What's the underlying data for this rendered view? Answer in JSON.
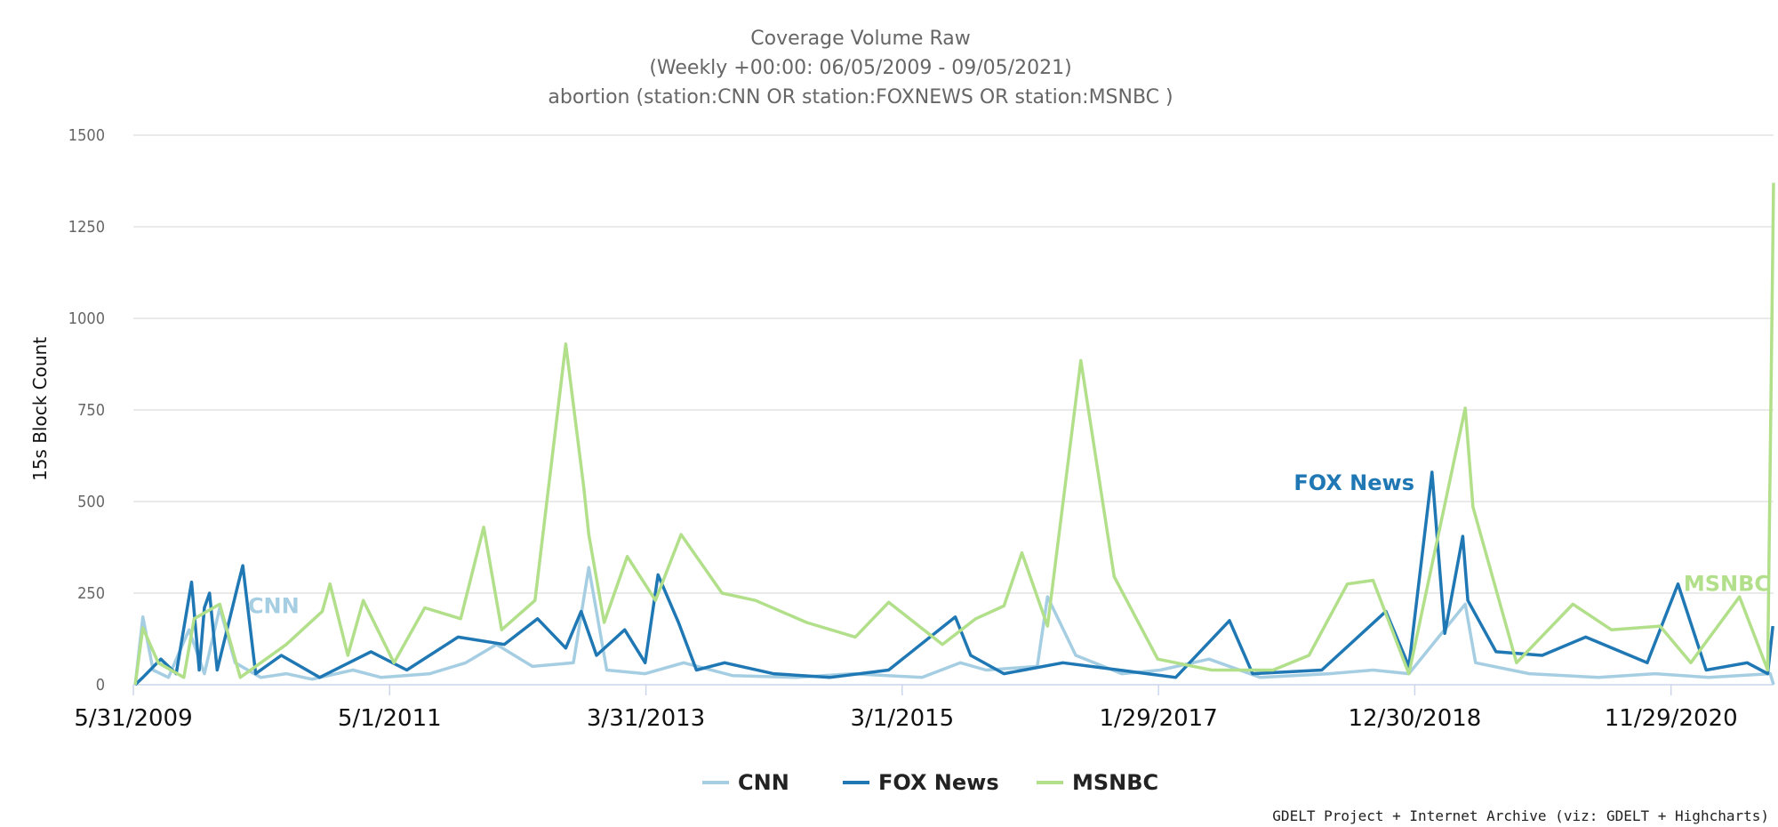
{
  "chart_data": {
    "type": "line",
    "title": "Coverage Volume Raw",
    "subtitle_lines": [
      "(Weekly +00:00: 06/05/2009 - 09/05/2021)",
      "abortion (station:CNN OR station:FOXNEWS OR station:MSNBC )"
    ],
    "ylabel": "15s Block Count",
    "xlabel": "",
    "ylim": [
      0,
      1500
    ],
    "yticks": [
      0,
      250,
      500,
      750,
      1000,
      1250,
      1500
    ],
    "xlim": [
      "2009-05-31",
      "2021-09-05"
    ],
    "xticks": [
      "5/31/2009",
      "5/1/2011",
      "3/31/2013",
      "3/1/2015",
      "1/29/2017",
      "12/30/2018",
      "11/29/2020"
    ],
    "grid": true,
    "legend_position": "bottom-center",
    "credits": "GDELT Project + Internet Archive (viz: GDELT + Highcharts)",
    "series": [
      {
        "name": "CNN",
        "label_on_chart": "CNN",
        "color": "#a6cee3",
        "points": [
          [
            "2009-06-05",
            0
          ],
          [
            "2009-06-26",
            185
          ],
          [
            "2009-07-24",
            40
          ],
          [
            "2009-09-04",
            20
          ],
          [
            "2009-10-30",
            150
          ],
          [
            "2009-12-11",
            30
          ],
          [
            "2010-01-22",
            210
          ],
          [
            "2010-03-05",
            60
          ],
          [
            "2010-05-14",
            20
          ],
          [
            "2010-07-23",
            30
          ],
          [
            "2010-10-01",
            15
          ],
          [
            "2011-01-21",
            40
          ],
          [
            "2011-04-08",
            20
          ],
          [
            "2011-08-19",
            30
          ],
          [
            "2011-11-25",
            60
          ],
          [
            "2012-02-17",
            110
          ],
          [
            "2012-05-25",
            50
          ],
          [
            "2012-09-14",
            60
          ],
          [
            "2012-10-26",
            320
          ],
          [
            "2012-12-14",
            40
          ],
          [
            "2013-03-29",
            30
          ],
          [
            "2013-07-12",
            60
          ],
          [
            "2013-11-22",
            25
          ],
          [
            "2014-05-16",
            20
          ],
          [
            "2014-10-17",
            30
          ],
          [
            "2015-04-24",
            20
          ],
          [
            "2015-08-07",
            60
          ],
          [
            "2015-10-16",
            40
          ],
          [
            "2016-03-04",
            50
          ],
          [
            "2016-04-01",
            240
          ],
          [
            "2016-06-17",
            80
          ],
          [
            "2016-10-21",
            30
          ],
          [
            "2017-02-03",
            40
          ],
          [
            "2017-06-16",
            70
          ],
          [
            "2017-11-03",
            20
          ],
          [
            "2018-05-11",
            30
          ],
          [
            "2018-09-07",
            40
          ],
          [
            "2018-12-14",
            30
          ],
          [
            "2019-05-17",
            220
          ],
          [
            "2019-06-14",
            60
          ],
          [
            "2019-11-08",
            30
          ],
          [
            "2020-05-15",
            20
          ],
          [
            "2020-10-16",
            30
          ],
          [
            "2021-03-12",
            20
          ],
          [
            "2021-08-27",
            30
          ],
          [
            "2021-09-05",
            0
          ]
        ]
      },
      {
        "name": "FOX News",
        "label_on_chart": "FOX News",
        "color": "#1f78b4",
        "points": [
          [
            "2009-06-05",
            0
          ],
          [
            "2009-06-26",
            20
          ],
          [
            "2009-08-14",
            70
          ],
          [
            "2009-09-25",
            30
          ],
          [
            "2009-11-06",
            280
          ],
          [
            "2009-11-27",
            40
          ],
          [
            "2009-12-11",
            210
          ],
          [
            "2009-12-25",
            250
          ],
          [
            "2010-01-15",
            40
          ],
          [
            "2010-03-12",
            270
          ],
          [
            "2010-03-26",
            325
          ],
          [
            "2010-04-30",
            30
          ],
          [
            "2010-07-09",
            80
          ],
          [
            "2010-10-22",
            20
          ],
          [
            "2011-03-11",
            90
          ],
          [
            "2011-06-17",
            40
          ],
          [
            "2011-11-04",
            130
          ],
          [
            "2012-03-09",
            110
          ],
          [
            "2012-06-08",
            180
          ],
          [
            "2012-08-24",
            100
          ],
          [
            "2012-10-05",
            200
          ],
          [
            "2012-11-16",
            80
          ],
          [
            "2013-02-01",
            150
          ],
          [
            "2013-03-29",
            60
          ],
          [
            "2013-05-03",
            300
          ],
          [
            "2013-06-28",
            170
          ],
          [
            "2013-08-16",
            40
          ],
          [
            "2013-11-01",
            60
          ],
          [
            "2014-03-14",
            30
          ],
          [
            "2014-08-15",
            20
          ],
          [
            "2015-01-23",
            40
          ],
          [
            "2015-07-24",
            185
          ],
          [
            "2015-09-04",
            80
          ],
          [
            "2015-12-04",
            30
          ],
          [
            "2016-05-13",
            60
          ],
          [
            "2016-10-14",
            40
          ],
          [
            "2017-03-17",
            20
          ],
          [
            "2017-08-11",
            175
          ],
          [
            "2017-10-13",
            30
          ],
          [
            "2018-04-20",
            40
          ],
          [
            "2018-10-12",
            200
          ],
          [
            "2018-12-14",
            50
          ],
          [
            "2019-02-15",
            580
          ],
          [
            "2019-03-22",
            140
          ],
          [
            "2019-05-10",
            405
          ],
          [
            "2019-05-24",
            230
          ],
          [
            "2019-08-09",
            90
          ],
          [
            "2019-12-13",
            80
          ],
          [
            "2020-04-10",
            130
          ],
          [
            "2020-09-25",
            60
          ],
          [
            "2020-12-18",
            275
          ],
          [
            "2021-03-05",
            40
          ],
          [
            "2021-06-25",
            60
          ],
          [
            "2021-08-20",
            30
          ],
          [
            "2021-09-03",
            160
          ]
        ]
      },
      {
        "name": "MSNBC",
        "label_on_chart": "MSNBC",
        "color": "#b2df8a",
        "points": [
          [
            "2009-06-05",
            0
          ],
          [
            "2009-06-26",
            155
          ],
          [
            "2009-08-07",
            60
          ],
          [
            "2009-10-16",
            20
          ],
          [
            "2009-11-13",
            180
          ],
          [
            "2010-01-22",
            220
          ],
          [
            "2010-03-19",
            20
          ],
          [
            "2010-07-23",
            110
          ],
          [
            "2010-10-29",
            200
          ],
          [
            "2010-11-19",
            275
          ],
          [
            "2011-01-07",
            80
          ],
          [
            "2011-02-18",
            230
          ],
          [
            "2011-05-13",
            60
          ],
          [
            "2011-08-05",
            210
          ],
          [
            "2011-11-11",
            180
          ],
          [
            "2012-01-13",
            430
          ],
          [
            "2012-03-02",
            150
          ],
          [
            "2012-06-01",
            230
          ],
          [
            "2012-08-24",
            930
          ],
          [
            "2012-10-12",
            540
          ],
          [
            "2012-10-26",
            410
          ],
          [
            "2012-12-07",
            170
          ],
          [
            "2013-02-08",
            350
          ],
          [
            "2013-04-26",
            230
          ],
          [
            "2013-07-05",
            410
          ],
          [
            "2013-10-25",
            250
          ],
          [
            "2014-01-24",
            230
          ],
          [
            "2014-06-13",
            170
          ],
          [
            "2014-10-24",
            130
          ],
          [
            "2015-01-23",
            225
          ],
          [
            "2015-06-19",
            110
          ],
          [
            "2015-09-18",
            180
          ],
          [
            "2015-12-04",
            215
          ],
          [
            "2016-01-22",
            360
          ],
          [
            "2016-04-01",
            160
          ],
          [
            "2016-07-01",
            885
          ],
          [
            "2016-09-30",
            295
          ],
          [
            "2017-01-27",
            70
          ],
          [
            "2017-06-23",
            40
          ],
          [
            "2017-12-08",
            40
          ],
          [
            "2018-03-16",
            80
          ],
          [
            "2018-06-29",
            275
          ],
          [
            "2018-09-07",
            285
          ],
          [
            "2018-12-14",
            30
          ],
          [
            "2019-05-17",
            755
          ],
          [
            "2019-06-07",
            485
          ],
          [
            "2019-10-04",
            60
          ],
          [
            "2020-03-06",
            220
          ],
          [
            "2020-06-19",
            150
          ],
          [
            "2020-10-30",
            160
          ],
          [
            "2021-01-22",
            60
          ],
          [
            "2021-06-04",
            240
          ],
          [
            "2021-08-20",
            40
          ],
          [
            "2021-09-05",
            1370
          ]
        ]
      }
    ]
  }
}
